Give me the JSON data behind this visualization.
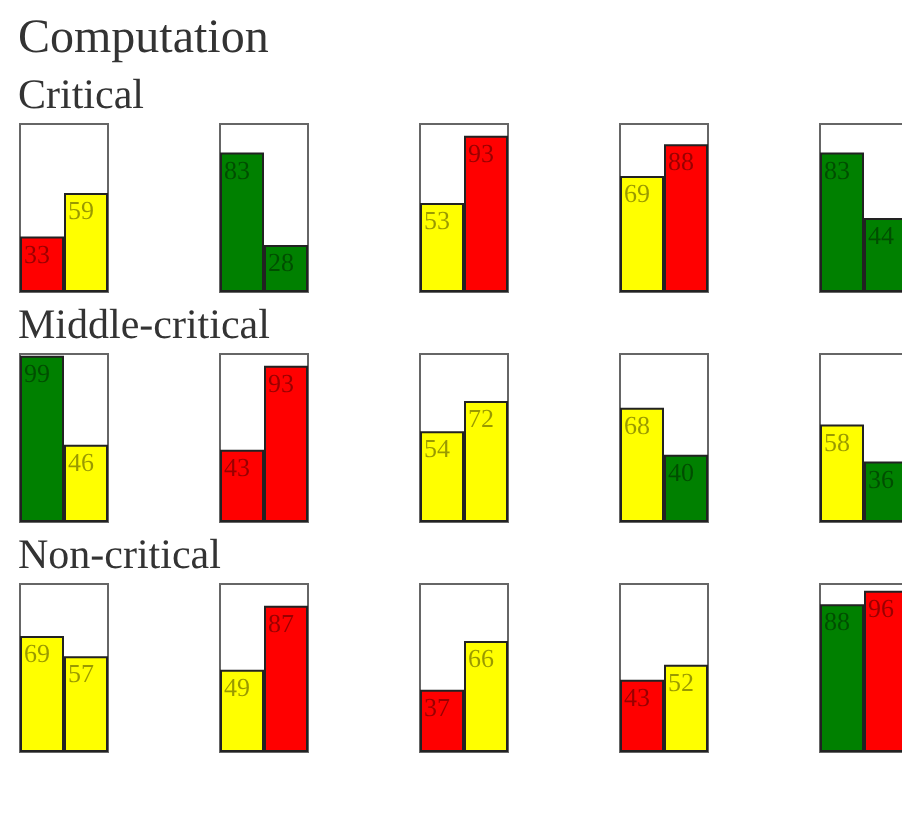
{
  "chart_data": [
    {
      "type": "bar",
      "title": "Computation",
      "subtitle": "Critical",
      "categories": [
        null,
        null
      ],
      "values": [
        33,
        59
      ],
      "colors": [
        "#ff0000",
        "#ffff00"
      ],
      "ylim": [
        0,
        100
      ],
      "data_labels": true,
      "tick_labels": false
    },
    {
      "type": "bar",
      "categories": [
        null,
        null
      ],
      "values": [
        83,
        28
      ],
      "colors": [
        "#008000",
        "#008000"
      ],
      "ylim": [
        0,
        100
      ],
      "data_labels": true,
      "tick_labels": false
    },
    {
      "type": "bar",
      "categories": [
        null,
        null
      ],
      "values": [
        53,
        93
      ],
      "colors": [
        "#ffff00",
        "#ff0000"
      ],
      "ylim": [
        0,
        100
      ],
      "data_labels": true,
      "tick_labels": false
    },
    {
      "type": "bar",
      "categories": [
        null,
        null
      ],
      "values": [
        69,
        88
      ],
      "colors": [
        "#ffff00",
        "#ff0000"
      ],
      "ylim": [
        0,
        100
      ],
      "data_labels": true,
      "tick_labels": false
    },
    {
      "type": "bar",
      "categories": [
        null,
        null
      ],
      "values": [
        83,
        44
      ],
      "colors": [
        "#008000",
        "#008000"
      ],
      "ylim": [
        0,
        100
      ],
      "data_labels": true,
      "tick_labels": false
    },
    {
      "type": "bar",
      "title": "Middle-critical",
      "categories": [
        null,
        null
      ],
      "values": [
        99,
        46
      ],
      "colors": [
        "#008000",
        "#ffff00"
      ],
      "ylim": [
        0,
        100
      ],
      "data_labels": true,
      "tick_labels": false
    },
    {
      "type": "bar",
      "categories": [
        null,
        null
      ],
      "values": [
        43,
        93
      ],
      "colors": [
        "#ff0000",
        "#ff0000"
      ],
      "ylim": [
        0,
        100
      ],
      "data_labels": true,
      "tick_labels": false
    },
    {
      "type": "bar",
      "categories": [
        null,
        null
      ],
      "values": [
        54,
        72
      ],
      "colors": [
        "#ffff00",
        "#ffff00"
      ],
      "ylim": [
        0,
        100
      ],
      "data_labels": true,
      "tick_labels": false
    },
    {
      "type": "bar",
      "categories": [
        null,
        null
      ],
      "values": [
        68,
        40
      ],
      "colors": [
        "#ffff00",
        "#008000"
      ],
      "ylim": [
        0,
        100
      ],
      "data_labels": true,
      "tick_labels": false
    },
    {
      "type": "bar",
      "categories": [
        null,
        null
      ],
      "values": [
        58,
        36
      ],
      "colors": [
        "#ffff00",
        "#008000"
      ],
      "ylim": [
        0,
        100
      ],
      "data_labels": true,
      "tick_labels": false
    },
    {
      "type": "bar",
      "title": "Non-critical",
      "categories": [
        null,
        null
      ],
      "values": [
        69,
        57
      ],
      "colors": [
        "#ffff00",
        "#ffff00"
      ],
      "ylim": [
        0,
        100
      ],
      "data_labels": true,
      "tick_labels": false
    },
    {
      "type": "bar",
      "categories": [
        null,
        null
      ],
      "values": [
        49,
        87
      ],
      "colors": [
        "#ffff00",
        "#ff0000"
      ],
      "ylim": [
        0,
        100
      ],
      "data_labels": true,
      "tick_labels": false
    },
    {
      "type": "bar",
      "categories": [
        null,
        null
      ],
      "values": [
        37,
        66
      ],
      "colors": [
        "#ff0000",
        "#ffff00"
      ],
      "ylim": [
        0,
        100
      ],
      "data_labels": true,
      "tick_labels": false
    },
    {
      "type": "bar",
      "categories": [
        null,
        null
      ],
      "values": [
        43,
        52
      ],
      "colors": [
        "#ff0000",
        "#ffff00"
      ],
      "ylim": [
        0,
        100
      ],
      "data_labels": true,
      "tick_labels": false
    },
    {
      "type": "bar",
      "categories": [
        null,
        null
      ],
      "values": [
        88,
        96
      ],
      "colors": [
        "#008000",
        "#ff0000"
      ],
      "ylim": [
        0,
        100
      ],
      "data_labels": true,
      "tick_labels": false
    }
  ]
}
